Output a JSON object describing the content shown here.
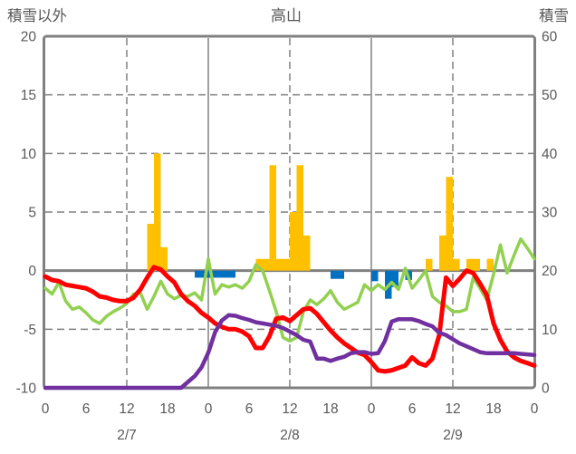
{
  "chart_data": {
    "type": "bar",
    "title": "高山",
    "left_axis": {
      "label": "積雪以外",
      "min": -10,
      "max": 20,
      "ticks": [
        20,
        15,
        10,
        5,
        0,
        -5,
        -10
      ]
    },
    "right_axis": {
      "label": "積雪",
      "min": 0,
      "max": 60,
      "ticks": [
        60,
        50,
        40,
        30,
        20,
        10,
        0
      ]
    },
    "x_axis": {
      "min_hour": 0,
      "max_hour": 72,
      "tick_interval_hours": 6,
      "hour_labels": [
        "0",
        "6",
        "12",
        "18",
        "0",
        "6",
        "12",
        "18",
        "0",
        "6",
        "12",
        "18",
        "0"
      ],
      "day_labels": [
        "2/7",
        "2/8",
        "2/9"
      ],
      "day_label_hours": [
        12,
        36,
        60
      ],
      "solid_gridline_hours": [
        24,
        48
      ],
      "dashed_gridline_hours": [
        12,
        36,
        60
      ]
    },
    "grid": {
      "dashed_horizontal_values": [
        15,
        10,
        5,
        -5
      ],
      "zero_line_value": 0
    },
    "colors": {
      "border": "#808080",
      "grid": "#808080",
      "text": "#595959",
      "yellow_bar": "#FFC000",
      "blue_bar": "#0070C0",
      "red_line": "#FF0000",
      "green_line": "#92D050",
      "purple_line": "#7030A0"
    },
    "series": {
      "yellow_bars": {
        "axis": "left",
        "points": [
          [
            15,
            4
          ],
          [
            16,
            10
          ],
          [
            17,
            2
          ],
          [
            31,
            1
          ],
          [
            32,
            1
          ],
          [
            33,
            9
          ],
          [
            34,
            1
          ],
          [
            35,
            1
          ],
          [
            36,
            5
          ],
          [
            37,
            9
          ],
          [
            38,
            3
          ],
          [
            56,
            1
          ],
          [
            58,
            3
          ],
          [
            59,
            8
          ],
          [
            60,
            1
          ],
          [
            62,
            1
          ],
          [
            63,
            1
          ],
          [
            65,
            1
          ]
        ]
      },
      "blue_bars": {
        "axis": "left",
        "points": [
          [
            22,
            -0.6
          ],
          [
            23,
            -0.6
          ],
          [
            24,
            -0.6
          ],
          [
            25,
            -0.6
          ],
          [
            26,
            -0.6
          ],
          [
            27,
            -0.6
          ],
          [
            42,
            -0.7
          ],
          [
            43,
            -0.7
          ],
          [
            48,
            -0.9
          ],
          [
            50,
            -2.4
          ],
          [
            51,
            -1.4
          ],
          [
            53,
            -0.8
          ]
        ]
      },
      "red_line": {
        "axis": "left",
        "values": [
          -0.5,
          -0.8,
          -0.9,
          -1.2,
          -1.3,
          -1.4,
          -1.5,
          -1.8,
          -2.2,
          -2.3,
          -2.5,
          -2.6,
          -2.6,
          -2.3,
          -1.6,
          -0.6,
          0.3,
          0.1,
          -0.5,
          -1.0,
          -2.0,
          -2.6,
          -3.0,
          -3.6,
          -4.0,
          -4.5,
          -4.8,
          -5.0,
          -5.0,
          -5.2,
          -5.6,
          -6.6,
          -6.6,
          -5.6,
          -4.1,
          -4.0,
          -4.3,
          -3.8,
          -3.3,
          -3.2,
          -3.7,
          -4.4,
          -5.1,
          -5.7,
          -6.2,
          -6.6,
          -7.0,
          -7.2,
          -7.8,
          -8.5,
          -8.6,
          -8.5,
          -8.3,
          -8.1,
          -7.4,
          -7.9,
          -8.1,
          -7.5,
          -5.5,
          -0.6,
          -1.3,
          -0.7,
          0.0,
          -0.2,
          -1.1,
          -2.1,
          -4.5,
          -5.9,
          -6.9,
          -7.4,
          -7.7,
          -7.9,
          -8.1
        ]
      },
      "green_line": {
        "axis": "left",
        "values": [
          -1.5,
          -2.0,
          -1.0,
          -2.6,
          -3.3,
          -3.1,
          -3.6,
          -4.2,
          -4.5,
          -3.9,
          -3.5,
          -3.2,
          -2.8,
          -2.0,
          -1.9,
          -3.3,
          -2.2,
          -0.9,
          -2.0,
          -2.4,
          -2.1,
          -2.2,
          -1.9,
          -2.5,
          1.0,
          -2.0,
          -1.2,
          -1.4,
          -1.2,
          -1.5,
          -0.9,
          0.5,
          0.0,
          -1.7,
          -3.5,
          -5.7,
          -6.0,
          -5.7,
          -3.5,
          -2.5,
          -2.9,
          -2.4,
          -1.7,
          -2.7,
          -3.3,
          -3.0,
          -2.7,
          -1.2,
          -1.7,
          -1.2,
          -1.6,
          -1.0,
          -1.6,
          0.2,
          -1.5,
          -0.8,
          0.0,
          -2.2,
          -2.7,
          -3.0,
          -3.5,
          -3.5,
          -3.3,
          -0.6,
          -1.5,
          -2.5,
          -0.3,
          2.2,
          -0.2,
          1.3,
          2.7,
          1.9,
          1.0
        ]
      },
      "purple_line": {
        "axis": "right",
        "values": [
          0,
          0,
          0,
          0,
          0,
          0,
          0,
          0,
          0,
          0,
          0,
          0,
          0,
          0,
          0,
          0,
          0,
          0,
          0,
          0,
          0,
          1.0,
          2.0,
          3.5,
          6.0,
          9.5,
          11.5,
          12.4,
          12.3,
          11.9,
          11.6,
          11.2,
          11.0,
          10.8,
          10.6,
          10.2,
          9.6,
          9.0,
          8.2,
          7.9,
          5.0,
          5.0,
          4.6,
          5.0,
          5.3,
          5.9,
          6.1,
          6.1,
          5.8,
          5.9,
          8.0,
          11.3,
          11.7,
          11.7,
          11.7,
          11.4,
          10.9,
          10.5,
          9.4,
          9.0,
          8.3,
          7.6,
          7.1,
          6.6,
          6.1,
          5.9,
          5.9,
          5.9,
          5.9,
          5.9,
          5.8,
          5.7,
          5.6
        ]
      }
    },
    "layout": {
      "legend": "none",
      "plot_border": true
    }
  }
}
